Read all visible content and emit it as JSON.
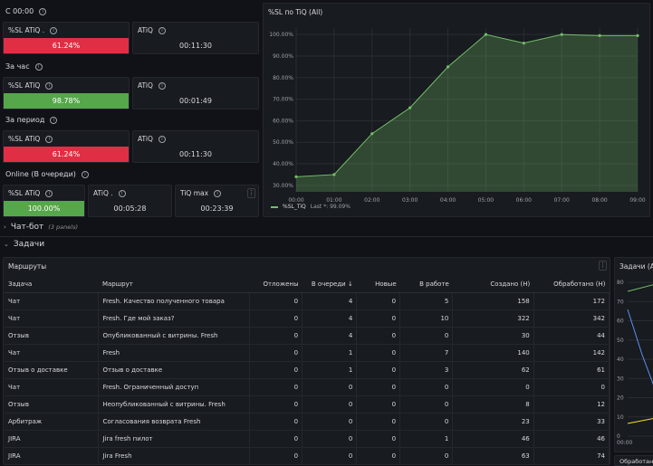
{
  "rows": {
    "since_midnight": "С 00:00",
    "per_hour": "За час",
    "per_period": "За период",
    "online": "Online (В очереди)"
  },
  "stats": {
    "r1": {
      "sl_title": "%SL ATiQ .",
      "sl_value": "61.24%",
      "atiq_title": "ATiQ",
      "atiq_value": "00:11:30"
    },
    "r2": {
      "sl_title": "%SL ATiQ",
      "sl_value": "98.78%",
      "atiq_title": "ATiQ",
      "atiq_value": "00:01:49"
    },
    "r3": {
      "sl_title": "%SL ATiQ",
      "sl_value": "61.24%",
      "atiq_title": "ATiQ",
      "atiq_value": "00:11:30"
    },
    "r4": {
      "sl_title": "%SL ATiQ",
      "sl_value": "100.00%",
      "atiq_title": "ATiQ .",
      "atiq_value": "00:05:28",
      "max_title": "TiQ max",
      "max_value": "00:23:39"
    }
  },
  "chart": {
    "panel_title": "%SL по TiQ (All)",
    "legend_label": "%SL_TiQ",
    "legend_last": "Last *: 99.09%"
  },
  "chart_data": {
    "type": "area",
    "x": [
      "00:00",
      "01:00",
      "02:00",
      "03:00",
      "04:00",
      "05:00",
      "06:00",
      "07:00",
      "08:00",
      "09:00"
    ],
    "yticks": [
      "100.00%",
      "90.00%",
      "80.00%",
      "70.00%",
      "60.00%",
      "50.00%",
      "40.00%",
      "30.00%"
    ],
    "series": [
      {
        "name": "%SL_TiQ",
        "values": [
          34,
          35,
          54,
          66,
          85,
          100,
          96,
          100,
          99.5,
          99.5
        ]
      }
    ],
    "ylim": [
      27,
      103
    ],
    "color": "#73bf69"
  },
  "sections": {
    "chatbot": "Чат-бот",
    "chatbot_count": "(3 panels)",
    "tasks": "Задачи"
  },
  "table": {
    "panel_title": "Маршруты",
    "columns": [
      "Задача",
      "Маршрут",
      "Отложены",
      "В очереди",
      "Новые",
      "В работе",
      "Создано (Н)",
      "Обработано (Н)"
    ],
    "sort_arrow": "↓",
    "rows": [
      [
        "Чат",
        "Fresh. Качество полученного товара",
        "0",
        "4",
        "0",
        "5",
        "158",
        "172"
      ],
      [
        "Чат",
        "Fresh. Где мой заказ?",
        "0",
        "4",
        "0",
        "10",
        "322",
        "342"
      ],
      [
        "Отзыв",
        "Опубликованный с витрины. Fresh",
        "0",
        "4",
        "0",
        "0",
        "30",
        "44"
      ],
      [
        "Чат",
        "Fresh",
        "0",
        "1",
        "0",
        "7",
        "140",
        "142"
      ],
      [
        "Отзыв о доставке",
        "Отзыв о доставке",
        "0",
        "1",
        "0",
        "3",
        "62",
        "61"
      ],
      [
        "Чат",
        "Fresh. Ограниченный доступ",
        "0",
        "0",
        "0",
        "0",
        "0",
        "0"
      ],
      [
        "Отзыв",
        "Неопубликованный с витрины. Fresh",
        "0",
        "0",
        "0",
        "0",
        "8",
        "12"
      ],
      [
        "Арбитраж",
        "Согласования возврата Fresh",
        "0",
        "0",
        "0",
        "0",
        "23",
        "33"
      ],
      [
        "JIRA",
        "Jira fresh пилот",
        "0",
        "0",
        "0",
        "1",
        "46",
        "46"
      ],
      [
        "JIRA",
        "Jira Fresh",
        "0",
        "0",
        "0",
        "0",
        "63",
        "74"
      ]
    ]
  },
  "side_chart": {
    "panel_title": "Задачи (All)",
    "yticks": [
      "80",
      "70",
      "60",
      "50",
      "40",
      "30",
      "20",
      "10",
      "0"
    ],
    "xtick": "00:00",
    "bottom_title": "Обработано"
  }
}
